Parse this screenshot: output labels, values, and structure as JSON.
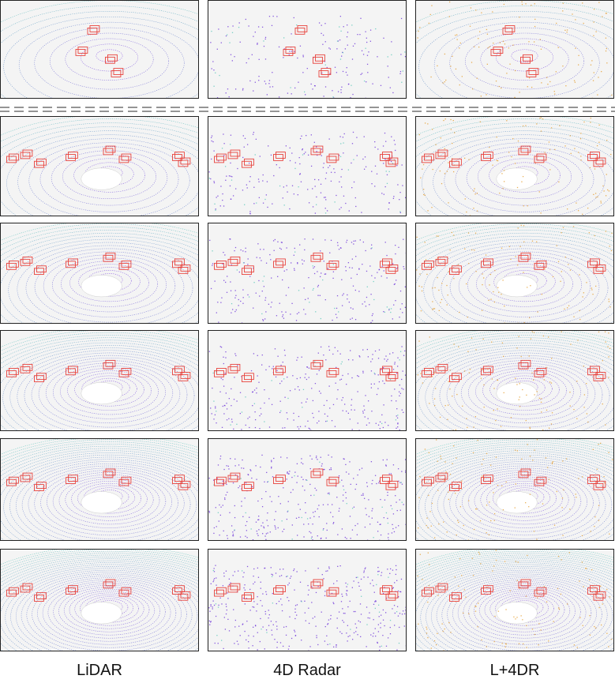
{
  "columns": [
    {
      "id": "lidar",
      "label": "LiDAR"
    },
    {
      "id": "radar",
      "label": "4D Radar"
    },
    {
      "id": "fusion",
      "label": "L+4DR"
    }
  ],
  "rows": 6,
  "colors": {
    "box": "#e8403a",
    "radar_point": "#6a2fd8",
    "fusion_point": "#e39b2a",
    "lidar_far": "#57c7b8",
    "lidar_near": "#7a40e0"
  }
}
